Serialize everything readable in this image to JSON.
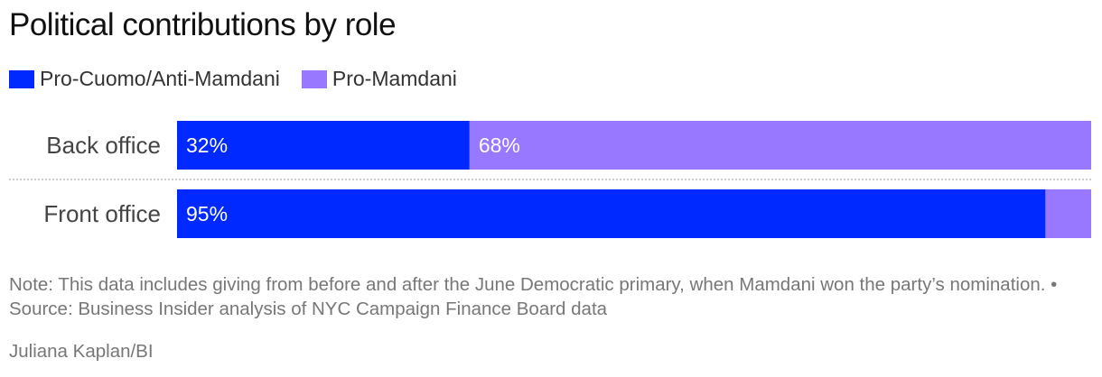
{
  "chart_data": {
    "type": "bar",
    "stacked": true,
    "orientation": "horizontal",
    "title": "Political contributions by role",
    "categories": [
      "Back office",
      "Front office"
    ],
    "series": [
      {
        "name": "Pro-Cuomo/Anti-Mamdani",
        "color": "#0029ff",
        "values": [
          32,
          95
        ],
        "labels": [
          "32%",
          "95%"
        ]
      },
      {
        "name": "Pro-Mamdani",
        "color": "#9878ff",
        "values": [
          68,
          5
        ],
        "labels": [
          "68%",
          ""
        ]
      }
    ],
    "xlim": [
      0,
      100
    ],
    "legend_position": "top-left",
    "grid": false
  },
  "note": "Note: This data includes giving from before and after the June Democratic primary, when Mamdani won the party’s nomination. • Source: Business Insider analysis of NYC Campaign Finance Board data",
  "credit": "Juliana Kaplan/BI"
}
